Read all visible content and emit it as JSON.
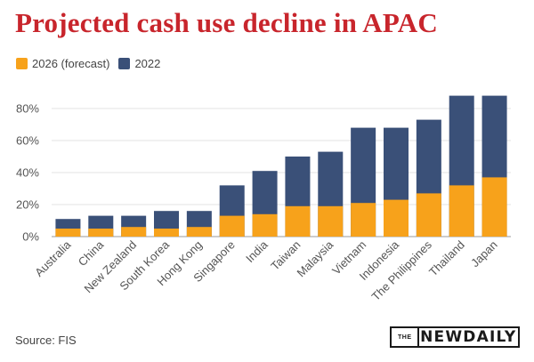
{
  "header": {
    "title": "Projected cash use decline in APAC"
  },
  "legend": {
    "items": [
      {
        "label": "2026 (forecast)",
        "color": "#f7a21b"
      },
      {
        "label": "2022",
        "color": "#3a5078"
      }
    ]
  },
  "footer": {
    "source": "Source: FIS",
    "brand_prefix": "THE",
    "brand_name": "NEWDAILY"
  },
  "chart_data": {
    "type": "bar",
    "title": "Projected cash use decline in APAC",
    "xlabel": "",
    "ylabel": "",
    "ylim": [
      0,
      90
    ],
    "yticks": [
      0,
      20,
      40,
      60,
      80
    ],
    "ytick_labels": [
      "0%",
      "20%",
      "40%",
      "60%",
      "80%"
    ],
    "grid": true,
    "legend_position": "top-left",
    "categories": [
      "Australia",
      "China",
      "New Zealand",
      "South Korea",
      "Hong Kong",
      "Singapore",
      "India",
      "Taiwan",
      "Malaysia",
      "Vietnam",
      "Indonesia",
      "The Philippines",
      "Thailand",
      "Japan"
    ],
    "series": [
      {
        "name": "2026 (forecast)",
        "color": "#f7a21b",
        "values": [
          5,
          5,
          6,
          5,
          6,
          13,
          14,
          19,
          19,
          21,
          23,
          27,
          32,
          37
        ]
      },
      {
        "name": "2022",
        "color": "#3a5078",
        "values": [
          11,
          13,
          13,
          16,
          16,
          32,
          41,
          50,
          53,
          68,
          68,
          73,
          88,
          88
        ]
      }
    ]
  }
}
